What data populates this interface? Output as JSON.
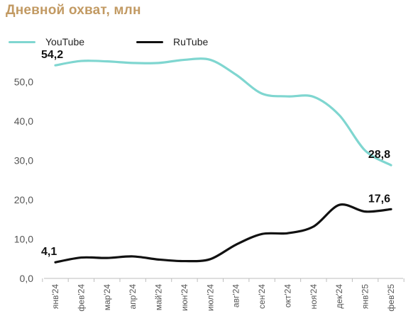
{
  "chart_data": {
    "type": "line",
    "title": "Дневной охват, млн",
    "categories": [
      "янв'24",
      "фев'24",
      "мар'24",
      "апр'24",
      "май'24",
      "июн'24",
      "июл'24",
      "авг'24",
      "сен'24",
      "окт'24",
      "ноя'24",
      "дек'24",
      "янв'25",
      "фев'25"
    ],
    "series": [
      {
        "name": "YouTube",
        "color": "#7fd6d0",
        "values": [
          54.2,
          55.3,
          55.2,
          54.8,
          54.8,
          55.6,
          55.6,
          51.8,
          47.0,
          46.3,
          46.2,
          41.5,
          32.5,
          28.8
        ],
        "labels": [
          "54,2",
          "",
          "",
          "",
          "",
          "",
          "",
          "",
          "",
          "",
          "",
          "",
          "",
          "28,8"
        ]
      },
      {
        "name": "RuTube",
        "color": "#111111",
        "values": [
          4.1,
          5.3,
          5.2,
          5.6,
          4.8,
          4.4,
          4.9,
          8.6,
          11.3,
          11.5,
          13.2,
          18.7,
          17.0,
          17.6
        ],
        "labels": [
          "4,1",
          "",
          "",
          "",
          "",
          "",
          "",
          "",
          "",
          "",
          "",
          "",
          "",
          "17,6"
        ]
      }
    ],
    "y_ticks": [
      "0,0",
      "10,0",
      "20,0",
      "30,0",
      "40,0",
      "50,0"
    ],
    "y_tick_values": [
      0,
      10,
      20,
      30,
      40,
      50
    ],
    "ylim": [
      0,
      60
    ],
    "grid": false,
    "legend": "top-left"
  }
}
